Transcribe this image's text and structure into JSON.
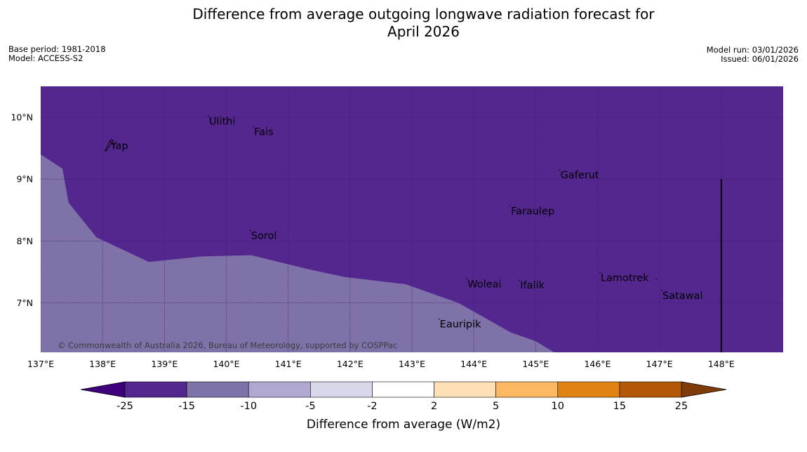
{
  "title": {
    "line1": "Difference from average outgoing longwave radiation forecast for",
    "line2": "April 2026"
  },
  "meta": {
    "base_period": "Base period: 1981-2018",
    "model": "Model: ACCESS-S2",
    "model_run": "Model run: 03/01/2026",
    "issued": "Issued: 06/01/2026"
  },
  "map": {
    "extent": {
      "lon_min": 137.0,
      "lon_max": 149.0,
      "lat_min": 6.2,
      "lat_max": 10.5
    },
    "lon_ticks": [
      137,
      138,
      139,
      140,
      141,
      142,
      143,
      144,
      145,
      146,
      147,
      148
    ],
    "lon_tick_labels": [
      "137°E",
      "138°E",
      "139°E",
      "140°E",
      "141°E",
      "142°E",
      "143°E",
      "144°E",
      "145°E",
      "146°E",
      "147°E",
      "148°E"
    ],
    "lat_ticks": [
      7,
      8,
      9,
      10
    ],
    "lat_tick_labels": [
      "7°N",
      "8°N",
      "9°N",
      "10°N"
    ],
    "background_color": "#54278f",
    "region_color": "#7f72a9",
    "region_category": "-15 to -10",
    "region_boundary": [
      [
        137.0,
        9.4
      ],
      [
        137.35,
        9.17
      ],
      [
        137.45,
        8.62
      ],
      [
        137.9,
        8.06
      ],
      [
        138.75,
        7.66
      ],
      [
        139.6,
        7.75
      ],
      [
        140.4,
        7.77
      ],
      [
        141.3,
        7.55
      ],
      [
        141.9,
        7.42
      ],
      [
        142.9,
        7.3
      ],
      [
        143.75,
        7.0
      ],
      [
        144.6,
        6.52
      ],
      [
        145.0,
        6.38
      ],
      [
        145.3,
        6.2
      ]
    ],
    "separator_line": {
      "lon": 148.0,
      "lat_from": 6.2,
      "lat_to": 9.0
    },
    "places": [
      {
        "name": "Ulithi",
        "lon": 139.72,
        "lat": 9.95
      },
      {
        "name": "Fais",
        "lon": 140.45,
        "lat": 9.78
      },
      {
        "name": "Yap",
        "lon": 138.13,
        "lat": 9.55
      },
      {
        "name": "Gaferut",
        "lon": 145.4,
        "lat": 9.08
      },
      {
        "name": "Faraulep",
        "lon": 144.6,
        "lat": 8.5
      },
      {
        "name": "Sorol",
        "lon": 140.4,
        "lat": 8.1
      },
      {
        "name": "Lamotrek",
        "lon": 146.05,
        "lat": 7.42
      },
      {
        "name": "Woleai",
        "lon": 143.9,
        "lat": 7.32
      },
      {
        "name": "Ifalik",
        "lon": 144.75,
        "lat": 7.3
      },
      {
        "name": "Satawal",
        "lon": 147.05,
        "lat": 7.13
      },
      {
        "name": "Eauripik",
        "lon": 143.45,
        "lat": 6.67
      }
    ],
    "copyright": "© Commonwealth of Australia 2026, Bureau of Meteorology, supported by COSPPac"
  },
  "colorbar": {
    "label": "Difference from average (W/m2)",
    "tick_labels": [
      "-25",
      "-15",
      "-10",
      "-5",
      "-2",
      "2",
      "5",
      "10",
      "15",
      "25"
    ],
    "low_extension_color": "#3f007d",
    "high_extension_color": "#7f3b08",
    "segment_colors": [
      "#54278f",
      "#7f72a9",
      "#b1a8d2",
      "#d9d8ea",
      "#ffffff",
      "#fee0b6",
      "#fdb863",
      "#e08214",
      "#b35806"
    ]
  }
}
